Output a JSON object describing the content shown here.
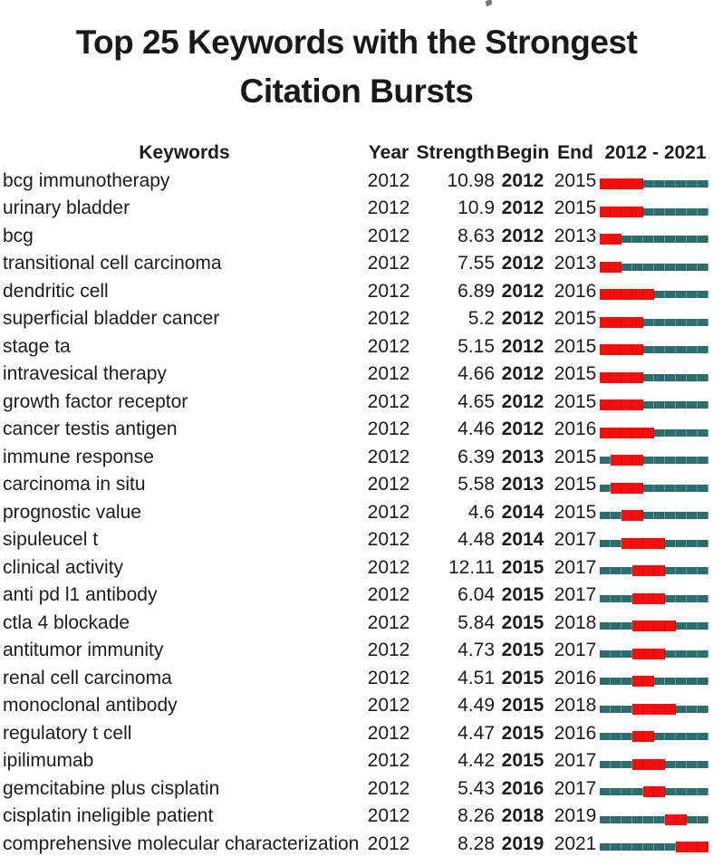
{
  "title": {
    "line1": "Top 25 Keywords with the Strongest",
    "line2": "Citation Bursts"
  },
  "table": {
    "headers": {
      "keywords": "Keywords",
      "year": "Year",
      "strength": "Strength",
      "begin": "Begin",
      "end": "End",
      "range": "2012 - 2021"
    }
  },
  "colors": {
    "burst_red": "#f2100d",
    "timeline_teal": "#2e6d6e",
    "text": "#1c1c1c"
  },
  "chart_data": {
    "type": "table",
    "title": "Top 25 Keywords with the Strongest Citation Bursts",
    "columns": [
      "Keywords",
      "Year",
      "Strength",
      "Begin",
      "End",
      "2012 - 2021"
    ],
    "timeline_start": 2012,
    "timeline_end": 2021,
    "legend": {
      "burst_color_meaning": "burst interval (Begin-End)",
      "timeline_color_meaning": "full 2012-2021 span"
    },
    "rows": [
      {
        "keyword": "bcg immunotherapy",
        "year": "2012",
        "strength": "10.98",
        "begin": "2012",
        "end": "2015"
      },
      {
        "keyword": "urinary bladder",
        "year": "2012",
        "strength": "10.9",
        "begin": "2012",
        "end": "2015"
      },
      {
        "keyword": "bcg",
        "year": "2012",
        "strength": "8.63",
        "begin": "2012",
        "end": "2013"
      },
      {
        "keyword": "transitional cell carcinoma",
        "year": "2012",
        "strength": "7.55",
        "begin": "2012",
        "end": "2013"
      },
      {
        "keyword": "dendritic cell",
        "year": "2012",
        "strength": "6.89",
        "begin": "2012",
        "end": "2016"
      },
      {
        "keyword": "superficial bladder cancer",
        "year": "2012",
        "strength": "5.2",
        "begin": "2012",
        "end": "2015"
      },
      {
        "keyword": "stage ta",
        "year": "2012",
        "strength": "5.15",
        "begin": "2012",
        "end": "2015"
      },
      {
        "keyword": "intravesical therapy",
        "year": "2012",
        "strength": "4.66",
        "begin": "2012",
        "end": "2015"
      },
      {
        "keyword": "growth factor receptor",
        "year": "2012",
        "strength": "4.65",
        "begin": "2012",
        "end": "2015"
      },
      {
        "keyword": "cancer testis antigen",
        "year": "2012",
        "strength": "4.46",
        "begin": "2012",
        "end": "2016"
      },
      {
        "keyword": "immune response",
        "year": "2012",
        "strength": "6.39",
        "begin": "2013",
        "end": "2015"
      },
      {
        "keyword": "carcinoma in situ",
        "year": "2012",
        "strength": "5.58",
        "begin": "2013",
        "end": "2015"
      },
      {
        "keyword": "prognostic value",
        "year": "2012",
        "strength": "4.6",
        "begin": "2014",
        "end": "2015"
      },
      {
        "keyword": "sipuleucel t",
        "year": "2012",
        "strength": "4.48",
        "begin": "2014",
        "end": "2017"
      },
      {
        "keyword": "clinical activity",
        "year": "2012",
        "strength": "12.11",
        "begin": "2015",
        "end": "2017"
      },
      {
        "keyword": "anti pd l1 antibody",
        "year": "2012",
        "strength": "6.04",
        "begin": "2015",
        "end": "2017"
      },
      {
        "keyword": "ctla 4 blockade",
        "year": "2012",
        "strength": "5.84",
        "begin": "2015",
        "end": "2018"
      },
      {
        "keyword": "antitumor immunity",
        "year": "2012",
        "strength": "4.73",
        "begin": "2015",
        "end": "2017"
      },
      {
        "keyword": "renal cell carcinoma",
        "year": "2012",
        "strength": "4.51",
        "begin": "2015",
        "end": "2016"
      },
      {
        "keyword": "monoclonal antibody",
        "year": "2012",
        "strength": "4.49",
        "begin": "2015",
        "end": "2018"
      },
      {
        "keyword": "regulatory t cell",
        "year": "2012",
        "strength": "4.47",
        "begin": "2015",
        "end": "2016"
      },
      {
        "keyword": "ipilimumab",
        "year": "2012",
        "strength": "4.42",
        "begin": "2015",
        "end": "2017"
      },
      {
        "keyword": "gemcitabine plus cisplatin",
        "year": "2012",
        "strength": "5.43",
        "begin": "2016",
        "end": "2017"
      },
      {
        "keyword": "cisplatin ineligible patient",
        "year": "2012",
        "strength": "8.26",
        "begin": "2018",
        "end": "2019"
      },
      {
        "keyword": "comprehensive molecular characterization",
        "year": "2012",
        "strength": "8.28",
        "begin": "2019",
        "end": "2021"
      }
    ]
  }
}
